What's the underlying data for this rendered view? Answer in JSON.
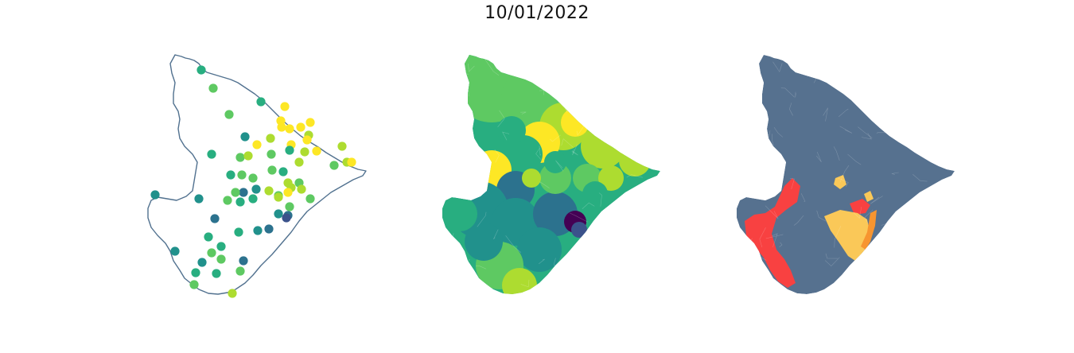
{
  "title": "10/01/2022",
  "colors": {
    "outline": "#51718f",
    "background": "#ffffff",
    "viridis": [
      "#440154",
      "#3b528b",
      "#2c728e",
      "#21918c",
      "#28ae80",
      "#5ec962",
      "#addc30",
      "#fde725"
    ],
    "class_base": "#56718f",
    "class_red": "#f84141",
    "class_yellow": "#fac858",
    "class_orange": "#f79530"
  },
  "panels": [
    {
      "id": "points",
      "kind": "point-map",
      "icon": "station-point-map"
    },
    {
      "id": "choropleth",
      "kind": "viridis-choropleth",
      "icon": "municipality-choropleth"
    },
    {
      "id": "classes",
      "kind": "categorical-classes",
      "icon": "risk-class-map"
    }
  ]
}
